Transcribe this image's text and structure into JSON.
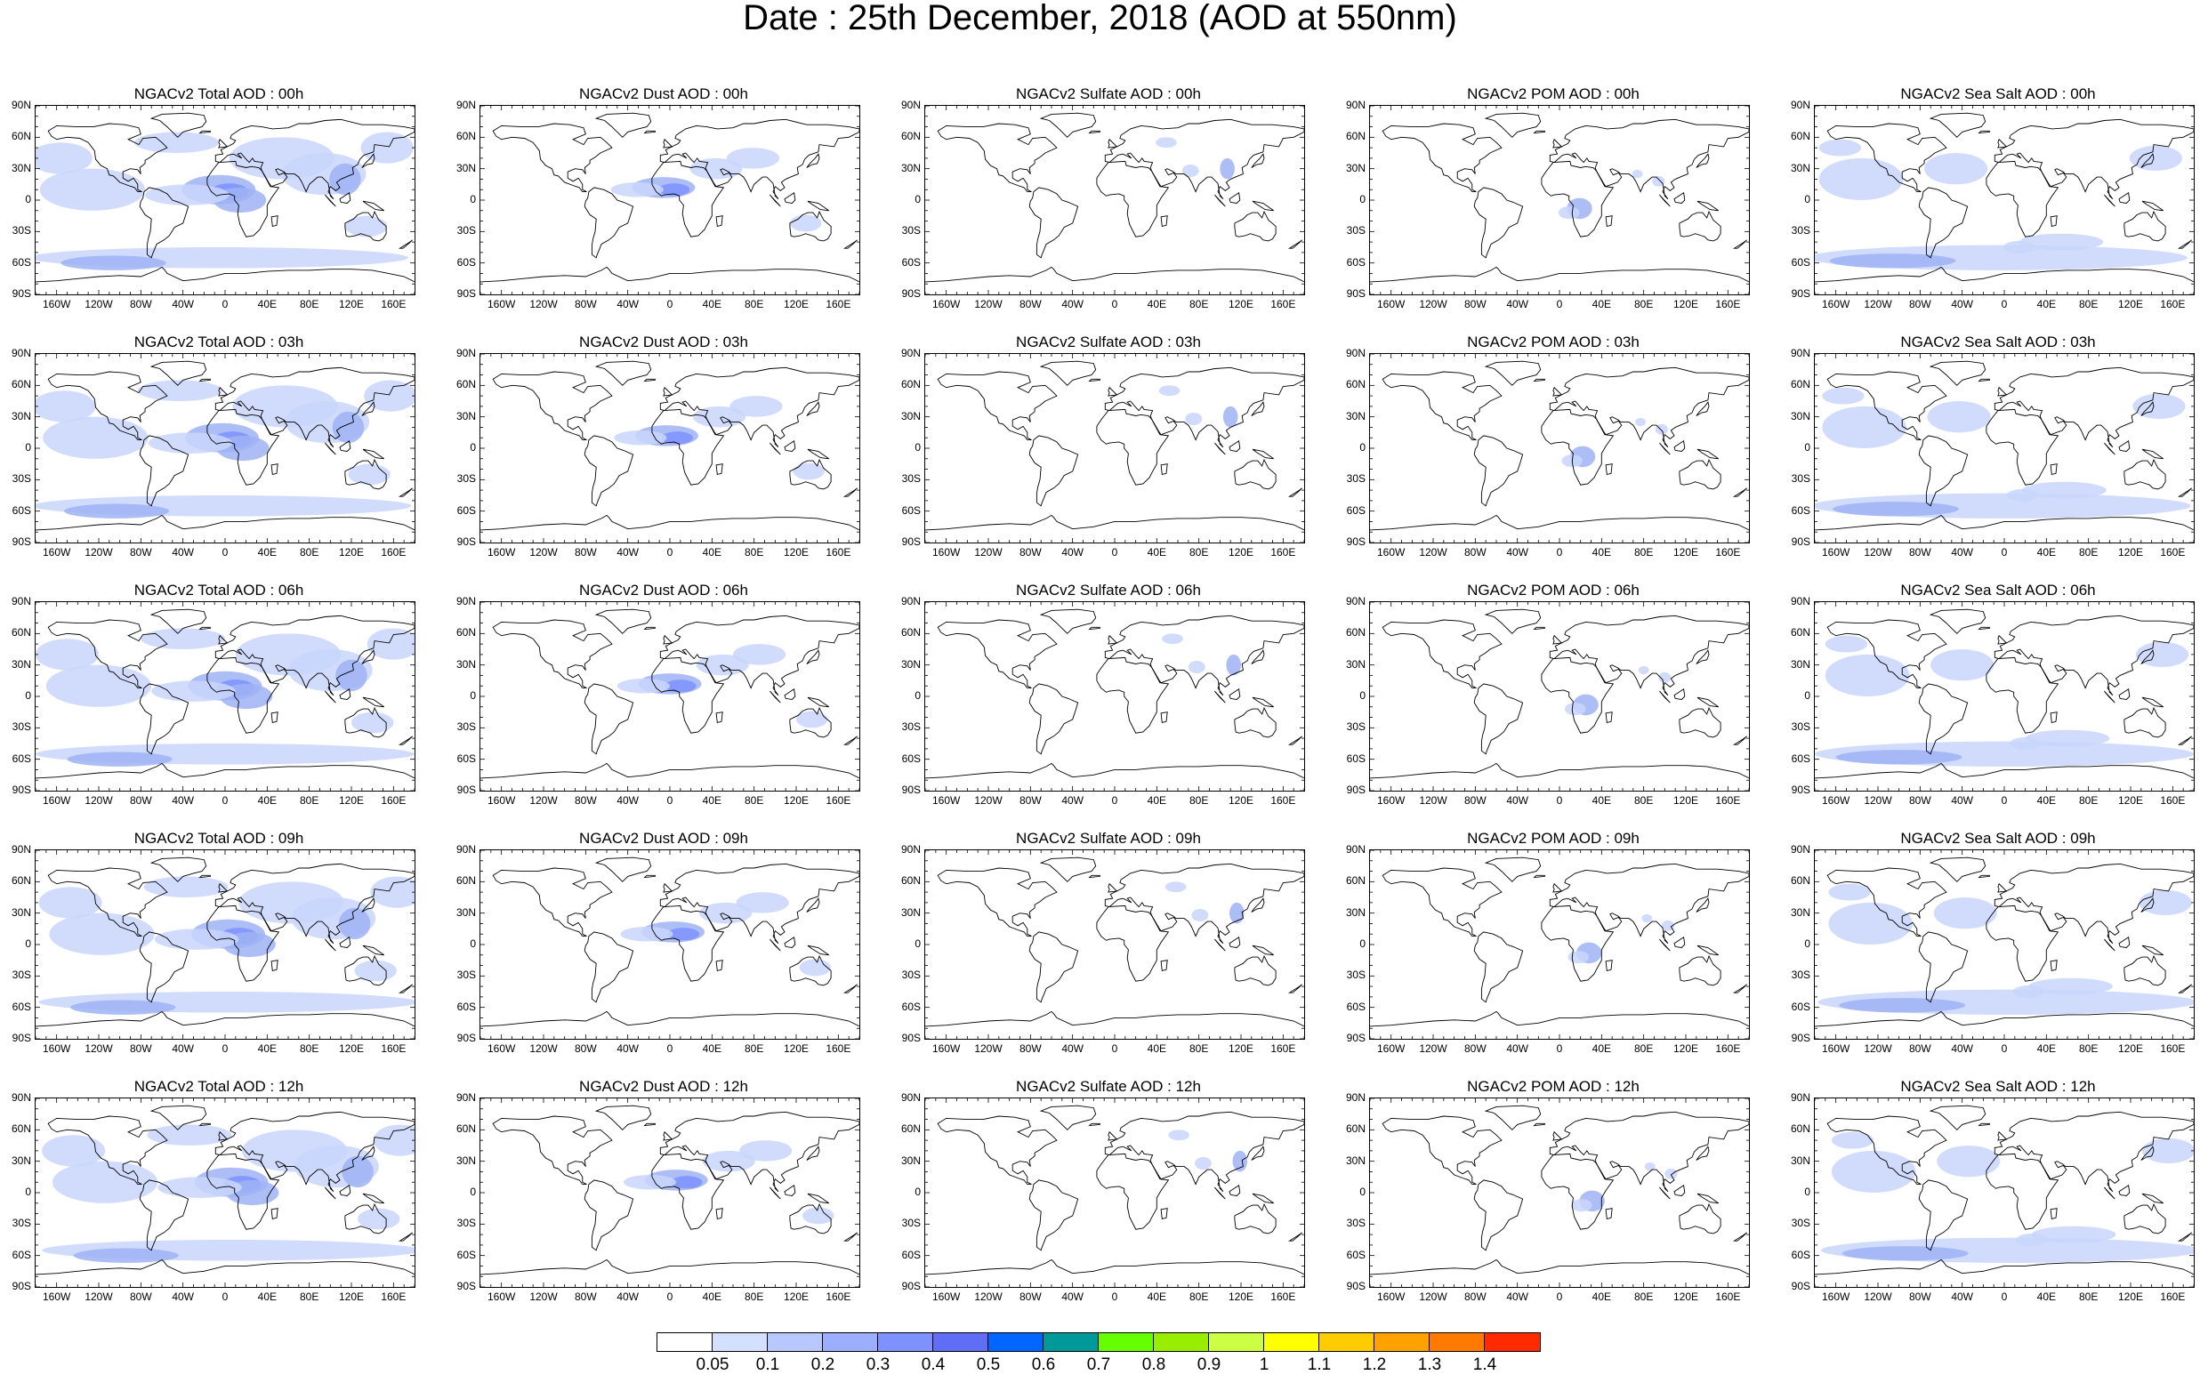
{
  "title": "Date : 25th December, 2018 (AOD at 550nm)",
  "lat_labels": [
    "90N",
    "60N",
    "30N",
    "0",
    "30S",
    "60S",
    "90S"
  ],
  "lon_labels": [
    "160W",
    "120W",
    "80W",
    "40W",
    "0",
    "40E",
    "80E",
    "120E",
    "160E"
  ],
  "panels": [
    [
      "NGACv2 Total AOD : 00h",
      "NGACv2 Dust AOD : 00h",
      "NGACv2 Sulfate AOD : 00h",
      "NGACv2 POM AOD : 00h",
      "NGACv2 Sea Salt AOD : 00h"
    ],
    [
      "NGACv2 Total AOD : 03h",
      "NGACv2 Dust AOD : 03h",
      "NGACv2 Sulfate AOD : 03h",
      "NGACv2 POM AOD : 03h",
      "NGACv2 Sea Salt AOD : 03h"
    ],
    [
      "NGACv2 Total AOD : 06h",
      "NGACv2 Dust AOD : 06h",
      "NGACv2 Sulfate AOD : 06h",
      "NGACv2 POM AOD : 06h",
      "NGACv2 Sea Salt AOD : 06h"
    ],
    [
      "NGACv2 Total AOD : 09h",
      "NGACv2 Dust AOD : 09h",
      "NGACv2 Sulfate AOD : 09h",
      "NGACv2 POM AOD : 09h",
      "NGACv2 Sea Salt  AOD : 09h"
    ],
    [
      "NGACv2 Total AOD  : 12h",
      "NGACv2 Dust AOD : 12h",
      "NGACv2 Sulfate AOD : 12h",
      "NGACv2 POM  AOD : 12h",
      "NGACv2 Sea Salt AOD : 12h"
    ]
  ],
  "colorbar": {
    "labels": [
      "0.05",
      "0.1",
      "0.2",
      "0.3",
      "0.4",
      "0.5",
      "0.6",
      "0.7",
      "0.8",
      "0.9",
      "1",
      "1.1",
      "1.2",
      "1.3",
      "1.4"
    ],
    "colors": [
      "#ffffff",
      "#d4e0ff",
      "#b8c8ff",
      "#9caeff",
      "#7e92ff",
      "#5f6ef5",
      "#0066ff",
      "#009999",
      "#66ff00",
      "#99ee00",
      "#ccff44",
      "#ffff00",
      "#ffcc00",
      "#ffa200",
      "#ff7a00",
      "#ff2a00"
    ]
  },
  "colors": {
    "shading_light": "#c9d6fb",
    "shading_mid": "#9fb3f5",
    "shading_dark": "#7e92ff",
    "coast": "#000000"
  }
}
